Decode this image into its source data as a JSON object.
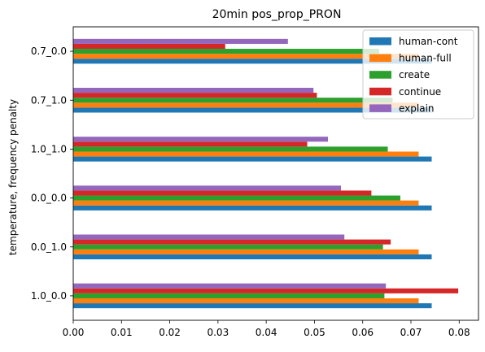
{
  "chart_data": {
    "type": "bar",
    "orientation": "horizontal",
    "title": "20min pos_prop_PRON",
    "xlabel": "",
    "ylabel": "temperature, frequency penalty",
    "xlim": [
      0,
      0.084
    ],
    "xticks": [
      "0.00",
      "0.01",
      "0.02",
      "0.03",
      "0.04",
      "0.05",
      "0.06",
      "0.07",
      "0.08"
    ],
    "xtick_values": [
      0,
      0.01,
      0.02,
      0.03,
      0.04,
      0.05,
      0.06,
      0.07,
      0.08
    ],
    "categories": [
      "1.0_0.0",
      "0.0_1.0",
      "0.0_0.0",
      "1.0_1.0",
      "0.7_1.0",
      "0.7_0.0"
    ],
    "grid": false,
    "legend_position": "top-right",
    "series": [
      {
        "name": "human-cont",
        "color": "#1f77b4",
        "values": [
          0.0743,
          0.0743,
          0.0743,
          0.0743,
          0.0743,
          0.0743
        ]
      },
      {
        "name": "human-full",
        "color": "#ff7f0e",
        "values": [
          0.0716,
          0.0716,
          0.0716,
          0.0716,
          0.0716,
          0.0716
        ]
      },
      {
        "name": "create",
        "color": "#2ca02c",
        "values": [
          0.0645,
          0.0642,
          0.0678,
          0.0652,
          0.0662,
          0.0634
        ]
      },
      {
        "name": "continue",
        "color": "#d62728",
        "values": [
          0.0798,
          0.0658,
          0.0618,
          0.0485,
          0.0505,
          0.0315
        ]
      },
      {
        "name": "explain",
        "color": "#9467bd",
        "values": [
          0.0648,
          0.0562,
          0.0555,
          0.0528,
          0.0498,
          0.0445
        ]
      }
    ]
  }
}
